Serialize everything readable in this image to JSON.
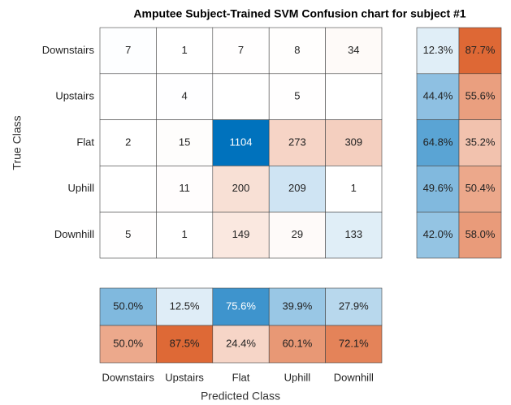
{
  "chart_data": {
    "type": "confusion",
    "title": "Amputee Subject-Trained SVM Confusion chart for subject #1",
    "xlabel": "Predicted Class",
    "ylabel": "True Class",
    "classes": [
      "Downstairs",
      "Upstairs",
      "Flat",
      "Uphill",
      "Downhill"
    ],
    "matrix": [
      [
        7,
        1,
        7,
        8,
        34
      ],
      [
        null,
        4,
        null,
        5,
        null
      ],
      [
        2,
        15,
        1104,
        273,
        309
      ],
      [
        null,
        11,
        200,
        209,
        1
      ],
      [
        5,
        1,
        149,
        29,
        133
      ]
    ],
    "diagonal_color": "#0072bd",
    "off_diagonal_color": "#d95319",
    "row_summary": {
      "values": [
        [
          12.3,
          87.7
        ],
        [
          44.4,
          55.6
        ],
        [
          64.8,
          35.2
        ],
        [
          49.6,
          50.4
        ],
        [
          42.0,
          58.0
        ]
      ],
      "value_labels": [
        [
          "12.3%",
          "87.7%"
        ],
        [
          "44.4%",
          "55.6%"
        ],
        [
          "64.8%",
          "35.2%"
        ],
        [
          "49.6%",
          "50.4%"
        ],
        [
          "42.0%",
          "58.0%"
        ]
      ]
    },
    "column_summary": {
      "values": [
        [
          50.0,
          12.5,
          75.6,
          39.9,
          27.9
        ],
        [
          50.0,
          87.5,
          24.4,
          60.1,
          72.1
        ]
      ],
      "value_labels": [
        [
          "50.0%",
          "12.5%",
          "75.6%",
          "39.9%",
          "27.9%"
        ],
        [
          "50.0%",
          "87.5%",
          "24.4%",
          "60.1%",
          "72.1%"
        ]
      ]
    }
  }
}
